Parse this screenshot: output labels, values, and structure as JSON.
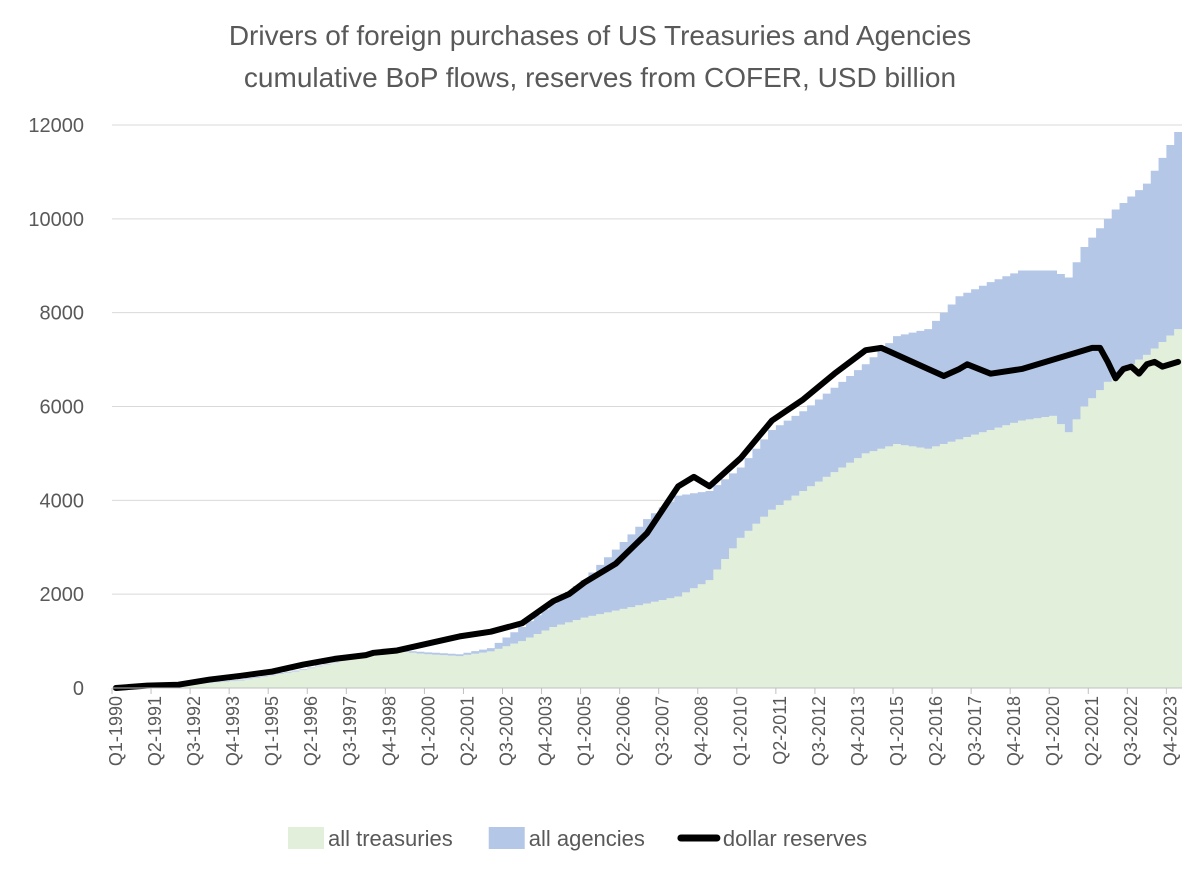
{
  "chart_data": {
    "type": "area",
    "title": "Drivers of foreign purchases of US Treasuries and Agencies",
    "subtitle": "cumulative BoP flows, reserves from COFER, USD billion",
    "xlabel": "",
    "ylabel": "",
    "ylim": [
      0,
      12000
    ],
    "yticks": [
      "0",
      "2000",
      "4000",
      "6000",
      "8000",
      "10000",
      "12000"
    ],
    "grid": true,
    "legend_position": "bottom",
    "x_tick_labels": [
      "Q1-1990",
      "Q2-1991",
      "Q3-1992",
      "Q4-1993",
      "Q1-1995",
      "Q2-1996",
      "Q3-1997",
      "Q4-1998",
      "Q1-2000",
      "Q2-2001",
      "Q3-2002",
      "Q4-2003",
      "Q1-2005",
      "Q2-2006",
      "Q3-2007",
      "Q4-2008",
      "Q1-2010",
      "Q2-2011",
      "Q3-2012",
      "Q4-2013",
      "Q1-2015",
      "Q2-2016",
      "Q3-2017",
      "Q4-2018",
      "Q1-2020",
      "Q2-2021",
      "Q3-2022",
      "Q4-2023"
    ],
    "x_start": "Q1-1990",
    "x_end": "Q1-2024",
    "quarter_step": 1,
    "series": [
      {
        "name": "all treasuries",
        "style": "stacked-area",
        "color": "#e2efda",
        "quarters": [
          "Q1-1990",
          "Q1-1992",
          "Q1-1994",
          "Q1-1996",
          "Q1-1998",
          "Q4-1998",
          "Q1-2000",
          "Q1-2001",
          "Q1-2002",
          "Q1-2003",
          "Q1-2004",
          "Q1-2005",
          "Q1-2006",
          "Q1-2007",
          "Q1-2008",
          "Q1-2009",
          "Q1-2010",
          "Q1-2011",
          "Q1-2012",
          "Q1-2013",
          "Q1-2014",
          "Q1-2015",
          "Q1-2016",
          "Q1-2017",
          "Q1-2018",
          "Q1-2019",
          "Q1-2020",
          "Q3-2020",
          "Q1-2021",
          "Q1-2022",
          "Q1-2023",
          "Q1-2024"
        ],
        "values": [
          0,
          60,
          160,
          380,
          700,
          800,
          720,
          680,
          780,
          1000,
          1300,
          1500,
          1650,
          1800,
          1950,
          2300,
          3200,
          3800,
          4200,
          4600,
          5000,
          5200,
          5100,
          5300,
          5500,
          5700,
          5800,
          5450,
          6000,
          6700,
          7100,
          7650
        ]
      },
      {
        "name": "all agencies",
        "style": "stacked-area",
        "color": "#b4c7e7",
        "quarters": [
          "Q1-1990",
          "Q1-1992",
          "Q1-1994",
          "Q1-1996",
          "Q1-1998",
          "Q4-1998",
          "Q1-2000",
          "Q1-2001",
          "Q1-2002",
          "Q1-2003",
          "Q1-2004",
          "Q1-2005",
          "Q1-2006",
          "Q1-2007",
          "Q1-2008",
          "Q1-2009",
          "Q1-2010",
          "Q1-2011",
          "Q1-2012",
          "Q1-2013",
          "Q1-2014",
          "Q1-2015",
          "Q1-2016",
          "Q1-2017",
          "Q1-2018",
          "Q1-2019",
          "Q1-2020",
          "Q3-2020",
          "Q1-2021",
          "Q1-2022",
          "Q1-2023",
          "Q1-2024"
        ],
        "values": [
          0,
          10,
          20,
          20,
          20,
          20,
          40,
          40,
          70,
          300,
          500,
          800,
          1300,
          1800,
          2150,
          1900,
          1500,
          1700,
          1700,
          1800,
          1900,
          2300,
          2550,
          3050,
          3150,
          3200,
          3100,
          3300,
          3400,
          3500,
          3650,
          4200
        ]
      },
      {
        "name": "dollar reserves",
        "style": "line",
        "color": "#000000",
        "quarters": [
          "Q1-1990",
          "Q1-1991",
          "Q1-1992",
          "Q1-1993",
          "Q1-1994",
          "Q1-1995",
          "Q1-1996",
          "Q1-1997",
          "Q1-1998",
          "Q2-1998",
          "Q1-1999",
          "Q1-2000",
          "Q1-2001",
          "Q1-2002",
          "Q1-2003",
          "Q1-2004",
          "Q3-2004",
          "Q1-2005",
          "Q1-2006",
          "Q1-2007",
          "Q1-2008",
          "Q3-2008",
          "Q1-2009",
          "Q1-2010",
          "Q1-2011",
          "Q1-2012",
          "Q1-2013",
          "Q1-2014",
          "Q3-2014",
          "Q1-2015",
          "Q1-2016",
          "Q3-2016",
          "Q1-2017",
          "Q2-2017",
          "Q1-2018",
          "Q1-2019",
          "Q1-2020",
          "Q1-2021",
          "Q2-2021",
          "Q3-2021",
          "Q4-2021",
          "Q1-2022",
          "Q2-2022",
          "Q3-2022",
          "Q4-2022",
          "Q1-2023",
          "Q2-2023",
          "Q3-2023",
          "Q4-2023",
          "Q1-2024"
        ],
        "values": [
          0,
          50,
          70,
          180,
          260,
          350,
          500,
          620,
          700,
          750,
          800,
          950,
          1100,
          1200,
          1380,
          1850,
          2000,
          2250,
          2650,
          3300,
          4300,
          4500,
          4300,
          4900,
          5700,
          6150,
          6700,
          7200,
          7250,
          7100,
          6800,
          6650,
          6800,
          6900,
          6700,
          6800,
          7000,
          7200,
          7250,
          7250,
          6950,
          6600,
          6800,
          6850,
          6700,
          6900,
          6950,
          6850,
          6900,
          6950
        ]
      }
    ]
  }
}
